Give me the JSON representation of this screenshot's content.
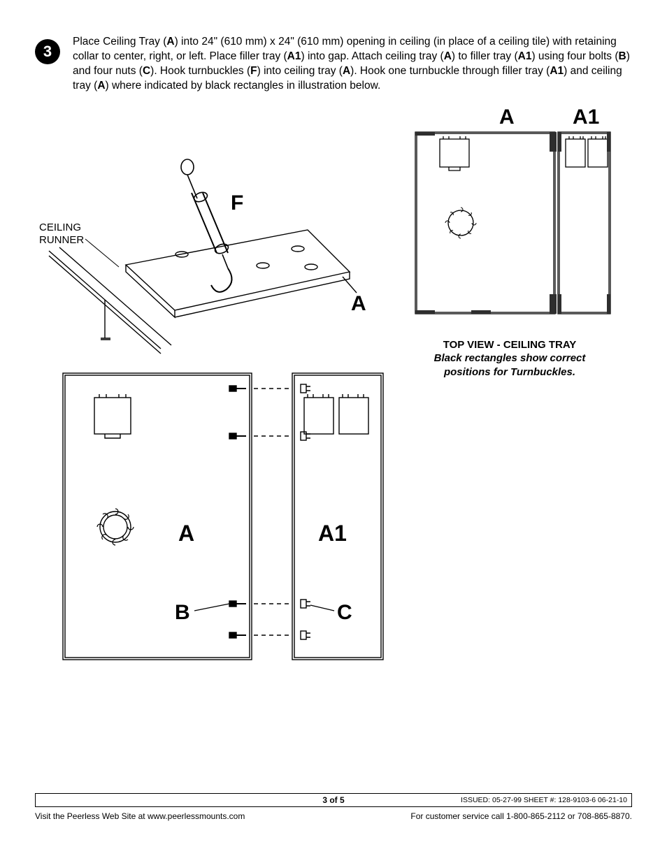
{
  "step": {
    "number": "3",
    "text_segments": [
      {
        "t": "Place Ceiling Tray (",
        "b": false
      },
      {
        "t": "A",
        "b": true
      },
      {
        "t": ") into 24\" (610 mm) x 24\" (610 mm) opening in ceiling (in place of a ceiling tile) with retaining collar to center, right, or left. Place filler tray (",
        "b": false
      },
      {
        "t": "A1",
        "b": true
      },
      {
        "t": ") into gap. Attach ceiling tray (",
        "b": false
      },
      {
        "t": "A",
        "b": true
      },
      {
        "t": ") to filler tray (",
        "b": false
      },
      {
        "t": "A1",
        "b": true
      },
      {
        "t": ") using four bolts (",
        "b": false
      },
      {
        "t": "B",
        "b": true
      },
      {
        "t": ") and four nuts (",
        "b": false
      },
      {
        "t": "C",
        "b": true
      },
      {
        "t": "). Hook turnbuckles (",
        "b": false
      },
      {
        "t": "F",
        "b": true
      },
      {
        "t": ") into ceiling tray (",
        "b": false
      },
      {
        "t": "A",
        "b": true
      },
      {
        "t": "). Hook one turnbuckle through filler tray (",
        "b": false
      },
      {
        "t": "A1",
        "b": true
      },
      {
        "t": ") and ceiling tray (",
        "b": false
      },
      {
        "t": "A",
        "b": true
      },
      {
        "t": ") where indicated by black rectangles in illustration below.",
        "b": false
      }
    ]
  },
  "diagrams": {
    "iso": {
      "labels": {
        "F": "F",
        "A": "A",
        "ceiling_runner": "CEILING\nRUNNER"
      },
      "stroke": "#000000",
      "thin": 1.2,
      "med": 1.6
    },
    "top_right": {
      "labels": {
        "A": "A",
        "A1": "A1"
      },
      "stroke": "#000000",
      "black_tabs_color": "#2e2e2e"
    },
    "bottom_left": {
      "labels": {
        "A": "A",
        "A1": "A1",
        "B": "B",
        "C": "C"
      },
      "stroke": "#000000"
    },
    "caption": {
      "title": "TOP VIEW - CEILING TRAY",
      "sub_line1": "Black rectangles show correct",
      "sub_line2": "positions for Turnbuckles."
    }
  },
  "footer": {
    "page": "3 of 5",
    "issued": "ISSUED: 05-27-99  SHEET #: 128-9103-6   06-21-10",
    "left": "Visit the Peerless Web Site at www.peerlessmounts.com",
    "right": "For customer service call 1-800-865-2112 or 708-865-8870."
  },
  "colors": {
    "page_bg": "#ffffff",
    "text": "#000000",
    "line": "#000000",
    "dark_tab": "#2e2e2e"
  }
}
